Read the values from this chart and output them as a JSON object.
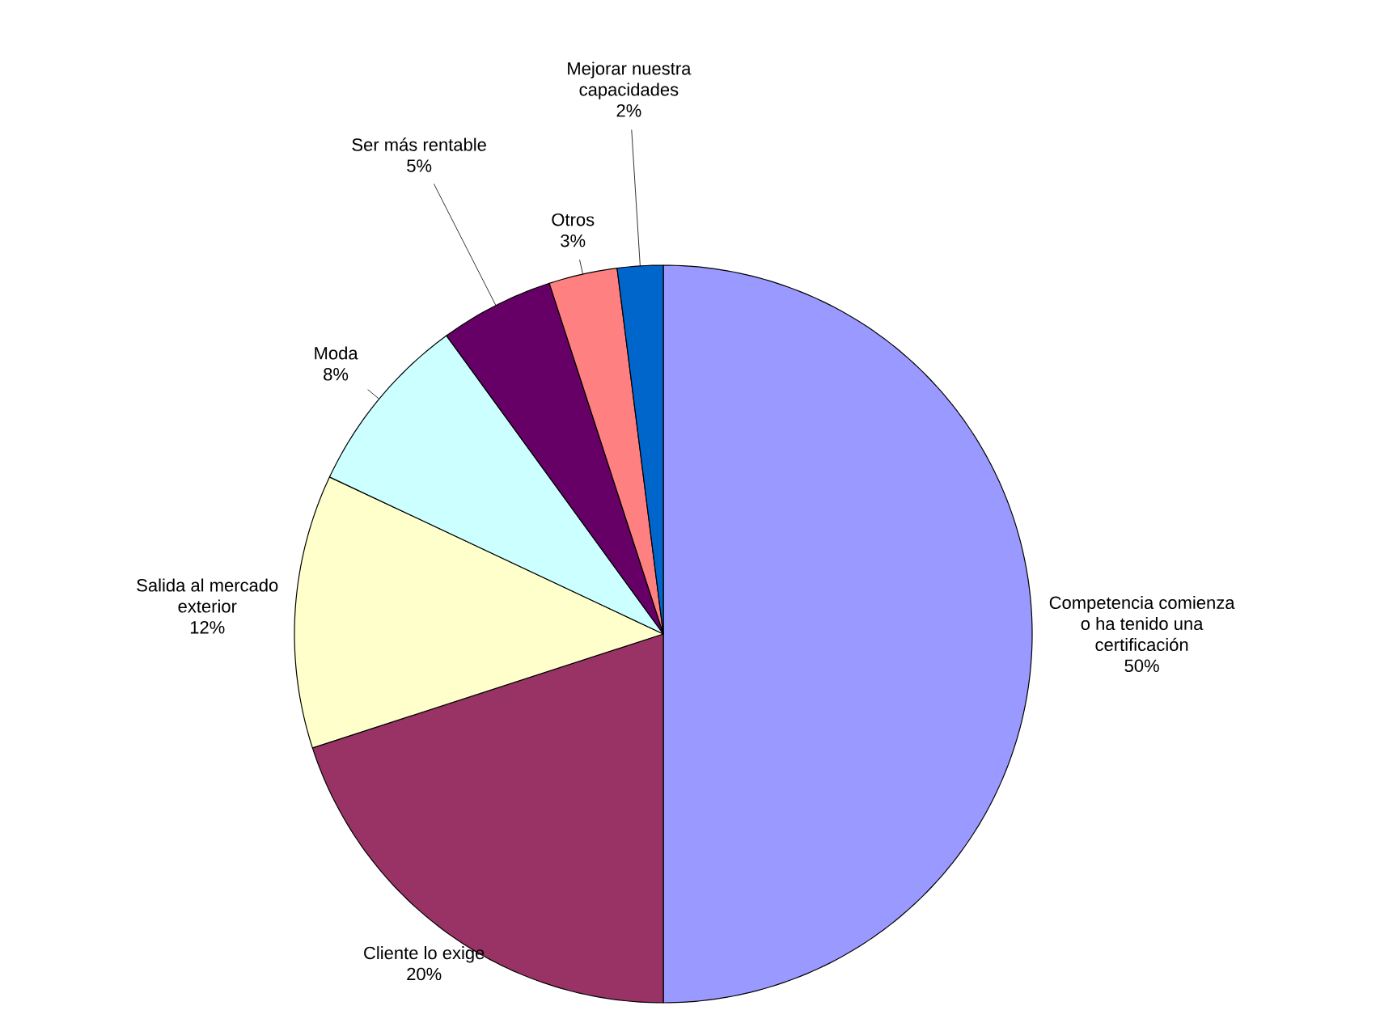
{
  "chart_data": {
    "type": "pie",
    "categories": [
      "Competencia comienza o ha tenido una certificación",
      "Cliente lo exige",
      "Salida al mercado exterior",
      "Moda",
      "Ser más rentable",
      "Otros",
      "Mejorar nuestra capacidades"
    ],
    "values": [
      50,
      20,
      12,
      8,
      5,
      3,
      2
    ],
    "value_labels": [
      "50%",
      "20%",
      "12%",
      "8%",
      "5%",
      "3%",
      "2%"
    ],
    "colors": [
      "#9999ff",
      "#993366",
      "#ffffcc",
      "#ccffff",
      "#660066",
      "#ff8080",
      "#0066cc"
    ]
  }
}
